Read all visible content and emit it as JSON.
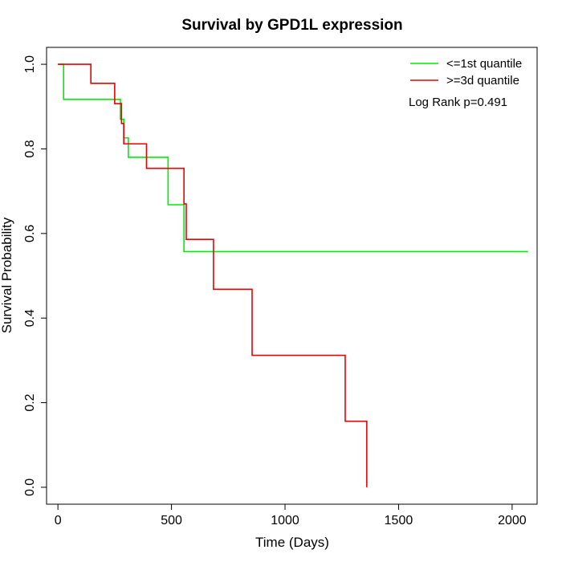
{
  "chart_data": {
    "type": "line",
    "title": "Survival by GPD1L expression",
    "xlabel": "Time (Days)",
    "ylabel": "Survival Probability",
    "xlim": [
      -50,
      2110
    ],
    "ylim": [
      -0.04,
      1.04
    ],
    "xticks": [
      0,
      500,
      1000,
      1500,
      2000
    ],
    "yticks": [
      0.0,
      0.2,
      0.4,
      0.6,
      0.8,
      1.0
    ],
    "xtick_labels": [
      "0",
      "500",
      "1000",
      "1500",
      "2000"
    ],
    "ytick_labels": [
      "0.0",
      "0.2",
      "0.4",
      "0.6",
      "0.8",
      "1.0"
    ],
    "grid": false,
    "legend_position": "top-right",
    "annotation": "Log Rank p=0.491",
    "series": [
      {
        "name": "<=1st quantile",
        "color": "#00ee00",
        "step": true,
        "x": [
          0,
          25,
          275,
          290,
          310,
          350,
          485,
          555,
          2070
        ],
        "y": [
          1.0,
          0.917,
          0.87,
          0.826,
          0.78,
          0.78,
          0.668,
          0.557,
          0.557
        ]
      },
      {
        "name": ">=3d quantile",
        "color": "#ee0000",
        "step": true,
        "x": [
          0,
          145,
          250,
          280,
          290,
          315,
          390,
          555,
          565,
          685,
          855,
          1265,
          1360
        ],
        "y": [
          1.0,
          0.955,
          0.907,
          0.86,
          0.812,
          0.812,
          0.754,
          0.67,
          0.586,
          0.468,
          0.312,
          0.156,
          0.0
        ]
      }
    ]
  }
}
